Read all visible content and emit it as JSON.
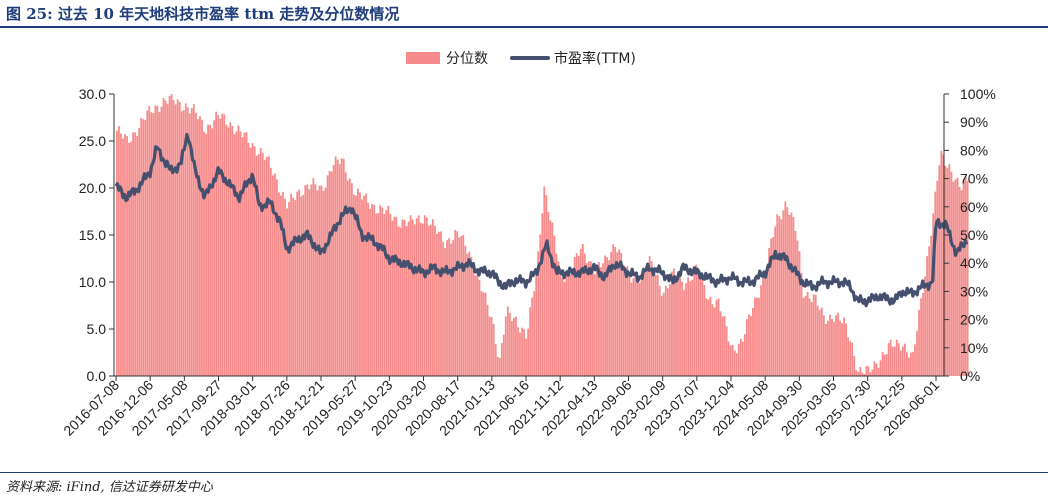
{
  "header": {
    "title": "图 25:  过去 10 年天地科技市盈率 ttm 走势及分位数情况"
  },
  "footer": {
    "source": "资料来源:   iFind, 信达证券研发中心"
  },
  "colors": {
    "percentile_fill": "#f78b8b",
    "pe_line": "#44506e",
    "title": "#1f3d7a"
  },
  "chart_data": {
    "type": "bar+line",
    "legend": {
      "position": "top-center",
      "items": [
        "分位数",
        "市盈率(TTM)"
      ]
    },
    "y_left": {
      "range": [
        0,
        30
      ],
      "ticks": [
        "0.0",
        "5.0",
        "10.0",
        "15.0",
        "20.0",
        "25.0",
        "30.0"
      ]
    },
    "y_right": {
      "range": [
        0,
        100
      ],
      "ticks": [
        "0%",
        "10%",
        "20%",
        "30%",
        "40%",
        "50%",
        "60%",
        "70%",
        "80%",
        "90%",
        "100%"
      ]
    },
    "grid": false,
    "x_tick_labels": [
      "2016-07-08",
      "2016-12-06",
      "2017-05-08",
      "2017-09-27",
      "2018-03-01",
      "2018-07-26",
      "2018-12-21",
      "2019-05-27",
      "2019-10-23",
      "2020-03-20",
      "2020-08-17",
      "2021-01-13",
      "2021-06-16",
      "2021-11-12",
      "2022-04-13",
      "2022-09-06",
      "2023-02-09",
      "2023-07-07",
      "2023-12-04",
      "2024-05-08",
      "2024-09-30",
      "2025-03-05",
      "2025-07-30",
      "2025-12-25",
      "2026-06-01"
    ],
    "series": [
      {
        "name": "分位数",
        "axis": "right",
        "points": [
          [
            0,
            87
          ],
          [
            0.3,
            83
          ],
          [
            0.6,
            88
          ],
          [
            1,
            94
          ],
          [
            1.3,
            97
          ],
          [
            1.6,
            98
          ],
          [
            2,
            96
          ],
          [
            2.3,
            93
          ],
          [
            2.6,
            88
          ],
          [
            3,
            92
          ],
          [
            3.3,
            90
          ],
          [
            3.6,
            86
          ],
          [
            4,
            82
          ],
          [
            4.3,
            78
          ],
          [
            4.6,
            72
          ],
          [
            5,
            60
          ],
          [
            5.3,
            65
          ],
          [
            5.6,
            68
          ],
          [
            6,
            66
          ],
          [
            6.3,
            75
          ],
          [
            6.6,
            76
          ],
          [
            7,
            65
          ],
          [
            7.3,
            62
          ],
          [
            7.6,
            60
          ],
          [
            8,
            57
          ],
          [
            8.3,
            55
          ],
          [
            8.6,
            54
          ],
          [
            9,
            57
          ],
          [
            9.3,
            52
          ],
          [
            9.6,
            48
          ],
          [
            10,
            50
          ],
          [
            10.3,
            45
          ],
          [
            10.6,
            33
          ],
          [
            11,
            20
          ],
          [
            11.2,
            5
          ],
          [
            11.4,
            22
          ],
          [
            11.7,
            20
          ],
          [
            12,
            14
          ],
          [
            12.3,
            38
          ],
          [
            12.5,
            68
          ],
          [
            12.7,
            55
          ],
          [
            13,
            35
          ],
          [
            13.3,
            38
          ],
          [
            13.6,
            45
          ],
          [
            14,
            38
          ],
          [
            14.3,
            40
          ],
          [
            14.6,
            48
          ],
          [
            15,
            34
          ],
          [
            15.3,
            36
          ],
          [
            15.6,
            40
          ],
          [
            16,
            30
          ],
          [
            16.3,
            36
          ],
          [
            16.6,
            33
          ],
          [
            17,
            38
          ],
          [
            17.3,
            28
          ],
          [
            17.6,
            26
          ],
          [
            18,
            10
          ],
          [
            18.3,
            12
          ],
          [
            18.6,
            24
          ],
          [
            19,
            38
          ],
          [
            19.3,
            55
          ],
          [
            19.6,
            62
          ],
          [
            19.9,
            50
          ],
          [
            20.1,
            30
          ],
          [
            20.4,
            28
          ],
          [
            20.7,
            20
          ],
          [
            21,
            22
          ],
          [
            21.3,
            18
          ],
          [
            21.5,
            12
          ],
          [
            21.7,
            2
          ],
          [
            22,
            1
          ],
          [
            22.3,
            6
          ],
          [
            22.6,
            10
          ],
          [
            23,
            12
          ],
          [
            23.3,
            6
          ],
          [
            23.6,
            32
          ],
          [
            23.9,
            58
          ],
          [
            24.1,
            78
          ],
          [
            24.4,
            74
          ],
          [
            24.7,
            66
          ],
          [
            24.9,
            70
          ]
        ]
      },
      {
        "name": "市盈率(TTM)",
        "axis": "left",
        "points": [
          [
            0,
            20.2
          ],
          [
            0.3,
            19.0
          ],
          [
            0.6,
            19.8
          ],
          [
            1,
            21.8
          ],
          [
            1.2,
            24.3
          ],
          [
            1.4,
            23.0
          ],
          [
            1.6,
            21.8
          ],
          [
            1.9,
            22.5
          ],
          [
            2.1,
            26.0
          ],
          [
            2.3,
            22.0
          ],
          [
            2.6,
            19.0
          ],
          [
            3,
            21.8
          ],
          [
            3.3,
            20.5
          ],
          [
            3.6,
            19.0
          ],
          [
            4,
            21.5
          ],
          [
            4.2,
            18.0
          ],
          [
            4.5,
            18.5
          ],
          [
            4.8,
            16.5
          ],
          [
            5,
            13.5
          ],
          [
            5.3,
            14.5
          ],
          [
            5.6,
            15.0
          ],
          [
            6,
            13.0
          ],
          [
            6.3,
            15.0
          ],
          [
            6.6,
            17.0
          ],
          [
            6.9,
            18.0
          ],
          [
            7.2,
            15.0
          ],
          [
            7.5,
            14.5
          ],
          [
            7.8,
            13.5
          ],
          [
            8,
            12.5
          ],
          [
            8.4,
            12.0
          ],
          [
            8.7,
            11.5
          ],
          [
            9,
            11.0
          ],
          [
            9.3,
            11.5
          ],
          [
            9.6,
            11.0
          ],
          [
            10,
            11.5
          ],
          [
            10.3,
            12.0
          ],
          [
            10.6,
            11.2
          ],
          [
            11,
            11.0
          ],
          [
            11.2,
            10.0
          ],
          [
            11.4,
            9.5
          ],
          [
            11.7,
            10.2
          ],
          [
            12,
            10.0
          ],
          [
            12.3,
            11.0
          ],
          [
            12.6,
            14.0
          ],
          [
            12.9,
            11.0
          ],
          [
            13.2,
            11.0
          ],
          [
            13.6,
            11.0
          ],
          [
            14,
            11.5
          ],
          [
            14.3,
            10.5
          ],
          [
            14.6,
            12.0
          ],
          [
            15,
            11.0
          ],
          [
            15.3,
            10.5
          ],
          [
            15.6,
            11.5
          ],
          [
            16,
            11.0
          ],
          [
            16.3,
            10.0
          ],
          [
            16.6,
            11.5
          ],
          [
            17,
            11.0
          ],
          [
            17.3,
            10.5
          ],
          [
            17.6,
            10.0
          ],
          [
            18,
            10.5
          ],
          [
            18.3,
            10.0
          ],
          [
            18.6,
            10.0
          ],
          [
            19,
            11.0
          ],
          [
            19.3,
            13.0
          ],
          [
            19.6,
            12.5
          ],
          [
            19.9,
            11.0
          ],
          [
            20.1,
            10.0
          ],
          [
            20.4,
            9.5
          ],
          [
            20.7,
            10.0
          ],
          [
            21,
            10.0
          ],
          [
            21.3,
            10.0
          ],
          [
            21.5,
            9.5
          ],
          [
            21.7,
            8.0
          ],
          [
            22,
            8.0
          ],
          [
            22.3,
            8.5
          ],
          [
            22.6,
            8.2
          ],
          [
            22.8,
            8.0
          ],
          [
            23,
            9.0
          ],
          [
            23.3,
            8.8
          ],
          [
            23.6,
            9.5
          ],
          [
            23.9,
            10.0
          ],
          [
            24.0,
            16.5
          ],
          [
            24.3,
            16.0
          ],
          [
            24.6,
            13.0
          ],
          [
            24.9,
            14.5
          ]
        ]
      }
    ]
  }
}
